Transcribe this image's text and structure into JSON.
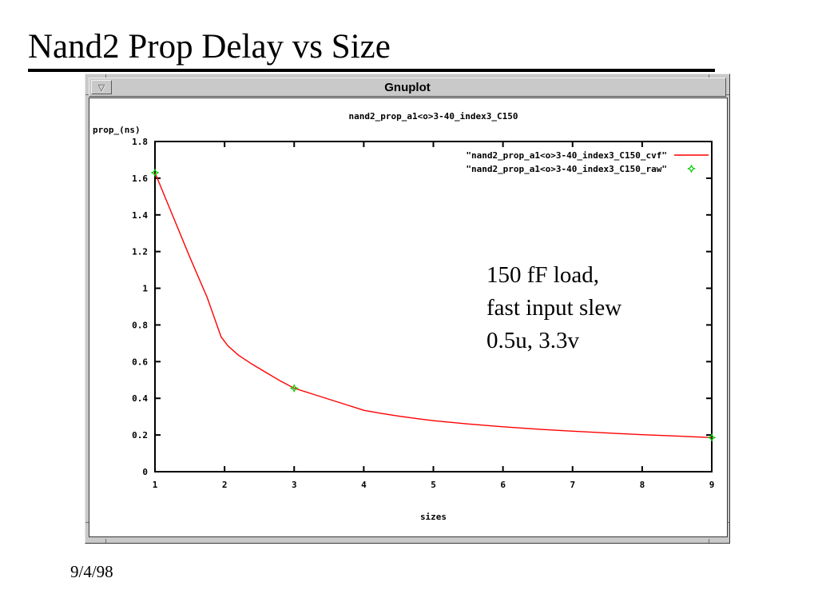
{
  "slide": {
    "title": "Nand2 Prop Delay vs Size",
    "date": "9/4/98",
    "annotation_lines": [
      "150 fF load,",
      "fast input slew",
      "0.5u, 3.3v"
    ]
  },
  "window": {
    "title": "Gnuplot",
    "menu_glyph": "▽"
  },
  "colors": {
    "curve_red": "#ff0000",
    "marker_green": "#00cc00",
    "window_gray": "#c9c9c9",
    "axis_black": "#000000"
  },
  "chart_data": {
    "type": "line",
    "title": "nand2_prop_a1<o>3-40_index3_C150",
    "xlabel": "sizes",
    "ylabel": "prop_(ns)",
    "xlim": [
      1,
      9
    ],
    "ylim": [
      0,
      1.8
    ],
    "xticks": [
      1,
      2,
      3,
      4,
      5,
      6,
      7,
      8,
      9
    ],
    "xtick_labels": [
      "1",
      "2",
      "3",
      "4",
      "5",
      "6",
      "7",
      "8",
      "9"
    ],
    "yticks": [
      0,
      0.2,
      0.4,
      0.6,
      0.8,
      1,
      1.2,
      1.4,
      1.6,
      1.8
    ],
    "ytick_labels": [
      "0",
      "0.2",
      "0.4",
      "0.6",
      "0.8",
      "1",
      "1.2",
      "1.4",
      "1.6",
      "1.8"
    ],
    "grid": false,
    "legend_position": "top-right-inside",
    "series": [
      {
        "name": "\"nand2_prop_a1<o>3-40_index3_C150_cvf\"",
        "style": "line",
        "color": "#ff0000",
        "points": [
          [
            1,
            1.63
          ],
          [
            1.25,
            1.4
          ],
          [
            1.5,
            1.17
          ],
          [
            1.75,
            0.95
          ],
          [
            1.95,
            0.735
          ],
          [
            2.05,
            0.685
          ],
          [
            2.2,
            0.635
          ],
          [
            2.4,
            0.585
          ],
          [
            2.6,
            0.54
          ],
          [
            2.8,
            0.495
          ],
          [
            3,
            0.455
          ],
          [
            3.25,
            0.425
          ],
          [
            3.5,
            0.395
          ],
          [
            3.75,
            0.365
          ],
          [
            4,
            0.335
          ],
          [
            4.25,
            0.318
          ],
          [
            4.5,
            0.303
          ],
          [
            4.75,
            0.29
          ],
          [
            5,
            0.278
          ],
          [
            5.5,
            0.26
          ],
          [
            6,
            0.245
          ],
          [
            6.5,
            0.232
          ],
          [
            7,
            0.221
          ],
          [
            7.5,
            0.211
          ],
          [
            8,
            0.202
          ],
          [
            8.5,
            0.194
          ],
          [
            9,
            0.186
          ]
        ]
      },
      {
        "name": "\"nand2_prop_a1<o>3-40_index3_C150_raw\"",
        "style": "points",
        "marker": "star4",
        "color": "#00cc00",
        "points": [
          [
            1,
            1.63
          ],
          [
            3,
            0.455
          ],
          [
            9,
            0.186
          ]
        ]
      }
    ]
  }
}
